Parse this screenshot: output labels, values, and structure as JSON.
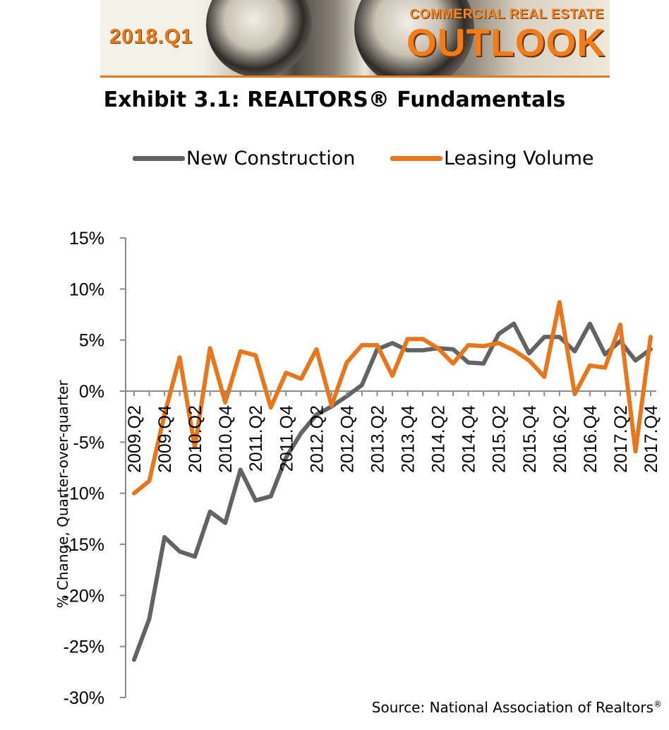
{
  "banner": {
    "edition": "2018.Q1",
    "subtitle": "COMMERCIAL REAL ESTATE",
    "headline": "OUTLOOK"
  },
  "source_note": "Source: National Association of Realtors",
  "source_mark": "®",
  "colors": {
    "new_construction": "#636363",
    "leasing_volume": "#e8761d",
    "axis": "#8c8c8c",
    "brand_orange": "#e77b1c"
  },
  "chart_data": {
    "type": "line",
    "title": "Exhibit 3.1: REALTORS® Fundamentals",
    "xlabel": "",
    "ylabel": "% Change, Quarter-over-quarter",
    "ylim": [
      -30,
      15
    ],
    "yticks": [
      15,
      10,
      5,
      0,
      -5,
      -10,
      -15,
      -20,
      -25,
      -30
    ],
    "ytick_labels": [
      "15%",
      "10%",
      "5%",
      "0%",
      "-5%",
      "-10%",
      "-15%",
      "-20%",
      "-25%",
      "-30%"
    ],
    "grid": false,
    "legend_position": "top",
    "x": [
      "2009.Q2",
      "2009.Q3",
      "2009.Q4",
      "2010.Q1",
      "2010.Q2",
      "2010.Q3",
      "2010.Q4",
      "2011.Q1",
      "2011.Q2",
      "2011.Q3",
      "2011.Q4",
      "2012.Q1",
      "2012.Q2",
      "2012.Q3",
      "2012.Q4",
      "2013.Q1",
      "2013.Q2",
      "2013.Q3",
      "2013.Q4",
      "2014.Q1",
      "2014.Q2",
      "2014.Q3",
      "2014.Q4",
      "2015.Q1",
      "2015.Q2",
      "2015.Q3",
      "2015.Q4",
      "2016.Q1",
      "2016.Q2",
      "2016.Q3",
      "2016.Q4",
      "2017.Q1",
      "2017.Q2",
      "2017.Q3",
      "2017.Q4"
    ],
    "x_tick_labels": [
      "2009.Q2",
      "2009.Q4",
      "2010.Q2",
      "2010.Q4",
      "2011.Q2",
      "2011.Q4",
      "2012.Q2",
      "2012.Q4",
      "2013.Q2",
      "2013.Q4",
      "2014.Q2",
      "2014.Q4",
      "2015.Q2",
      "2015.Q4",
      "2016.Q2",
      "2016.Q4",
      "2017.Q2",
      "2017.Q4"
    ],
    "series": [
      {
        "name": "New Construction",
        "values": [
          -26.3,
          -22.3,
          -14.3,
          -15.7,
          -16.2,
          -11.8,
          -12.9,
          -7.7,
          -10.7,
          -10.3,
          -6.5,
          -4.1,
          -2.3,
          -1.5,
          -0.5,
          0.6,
          4.1,
          4.7,
          4.0,
          4.0,
          4.2,
          4.1,
          2.8,
          2.7,
          5.6,
          6.6,
          3.7,
          5.3,
          5.3,
          3.9,
          6.6,
          3.6,
          4.9,
          3.0,
          4.1
        ]
      },
      {
        "name": "Leasing Volume",
        "values": [
          -10.0,
          -8.8,
          -2.3,
          3.3,
          -5.5,
          4.2,
          -1.1,
          3.9,
          3.5,
          -1.6,
          1.8,
          1.2,
          4.1,
          -1.4,
          2.8,
          4.5,
          4.5,
          1.5,
          5.1,
          5.1,
          4.2,
          2.7,
          4.5,
          4.4,
          4.7,
          4.0,
          3.0,
          1.4,
          8.7,
          -0.3,
          2.5,
          2.3,
          6.5,
          -5.9,
          5.3
        ]
      }
    ]
  }
}
